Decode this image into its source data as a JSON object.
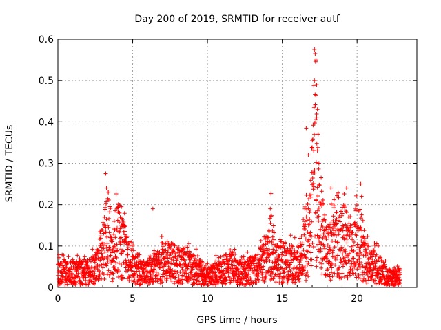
{
  "chart_data": {
    "type": "scatter",
    "title": "Day 200 of 2019, SRMTID for receiver autf",
    "xlabel": "GPS time / hours",
    "ylabel": "SRMTID / TECUs",
    "xlim": [
      0,
      24
    ],
    "ylim": [
      0,
      0.6
    ],
    "xticks": [
      0,
      5,
      10,
      15,
      20
    ],
    "xtick_labels": [
      "0",
      "5",
      "10",
      "15",
      "20"
    ],
    "yticks": [
      0,
      0.1,
      0.2,
      0.3,
      0.4,
      0.5,
      0.6
    ],
    "ytick_labels": [
      "0",
      "0.1",
      "0.2",
      "0.3",
      "0.4",
      "0.5",
      "0.6"
    ],
    "grid": true,
    "marker": "+",
    "series": [
      {
        "name": "SRMTID",
        "color": "#ff0000",
        "profile_x": [
          0.0,
          1.0,
          2.0,
          2.7,
          3.1,
          3.3,
          3.6,
          4.0,
          4.3,
          4.8,
          5.5,
          6.0,
          6.5,
          7.0,
          7.5,
          8.0,
          8.5,
          9.0,
          9.5,
          10.0,
          10.5,
          11.0,
          11.5,
          12.0,
          12.5,
          13.0,
          13.5,
          14.0,
          14.3,
          14.6,
          15.0,
          15.5,
          16.0,
          16.5,
          16.8,
          17.0,
          17.2,
          17.4,
          17.7,
          18.0,
          18.5,
          19.0,
          19.3,
          19.6,
          20.0,
          20.3,
          20.6,
          21.0,
          21.5,
          22.0,
          22.5,
          22.9
        ],
        "profile_y": [
          0.04,
          0.04,
          0.04,
          0.06,
          0.12,
          0.17,
          0.08,
          0.13,
          0.11,
          0.07,
          0.04,
          0.04,
          0.05,
          0.07,
          0.07,
          0.06,
          0.06,
          0.05,
          0.045,
          0.03,
          0.04,
          0.05,
          0.05,
          0.05,
          0.04,
          0.05,
          0.06,
          0.08,
          0.12,
          0.07,
          0.07,
          0.07,
          0.06,
          0.1,
          0.14,
          0.22,
          0.38,
          0.2,
          0.12,
          0.1,
          0.11,
          0.13,
          0.12,
          0.09,
          0.13,
          0.09,
          0.07,
          0.06,
          0.05,
          0.03,
          0.025,
          0.03
        ],
        "peaks": [
          {
            "x": 3.2,
            "y": 0.275
          },
          {
            "x": 3.25,
            "y": 0.24
          },
          {
            "x": 4.25,
            "y": 0.195
          },
          {
            "x": 6.35,
            "y": 0.19
          },
          {
            "x": 14.2,
            "y": 0.19
          },
          {
            "x": 16.6,
            "y": 0.385
          },
          {
            "x": 16.75,
            "y": 0.32
          },
          {
            "x": 17.15,
            "y": 0.575
          },
          {
            "x": 17.2,
            "y": 0.565
          },
          {
            "x": 17.25,
            "y": 0.55
          },
          {
            "x": 17.3,
            "y": 0.49
          },
          {
            "x": 17.25,
            "y": 0.465
          },
          {
            "x": 17.35,
            "y": 0.43
          },
          {
            "x": 17.3,
            "y": 0.41
          },
          {
            "x": 17.4,
            "y": 0.37
          },
          {
            "x": 17.35,
            "y": 0.33
          },
          {
            "x": 17.45,
            "y": 0.3
          },
          {
            "x": 17.6,
            "y": 0.265
          },
          {
            "x": 18.25,
            "y": 0.24
          },
          {
            "x": 19.3,
            "y": 0.24
          },
          {
            "x": 20.25,
            "y": 0.25
          },
          {
            "x": 20.3,
            "y": 0.22
          }
        ]
      }
    ]
  }
}
